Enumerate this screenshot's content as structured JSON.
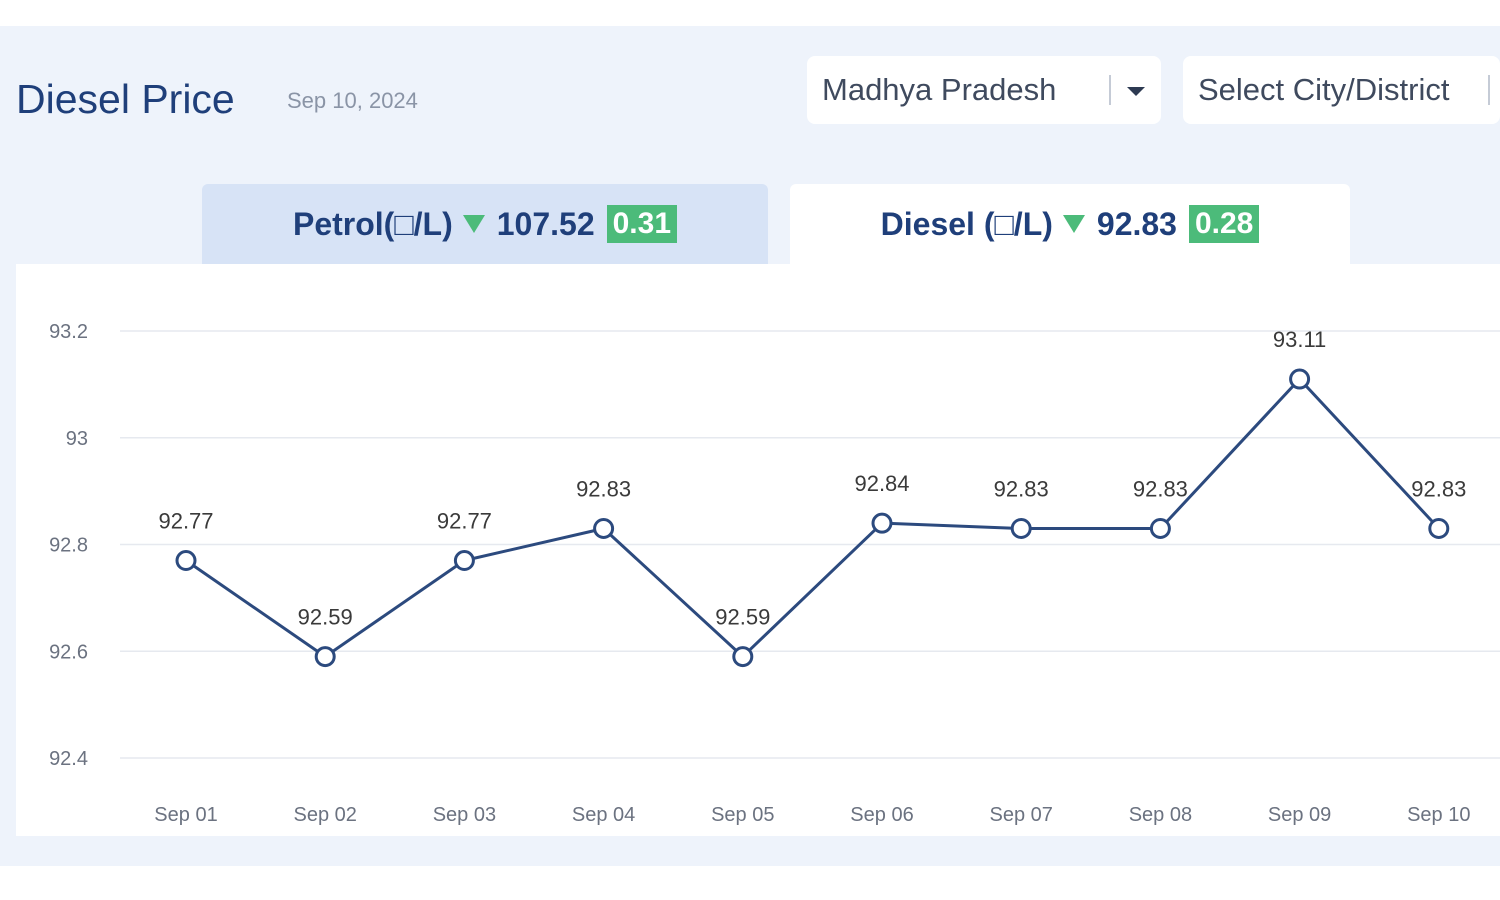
{
  "header": {
    "title": "Diesel Price",
    "date": "Sep 10, 2024"
  },
  "filters": {
    "state": "Madhya Pradesh",
    "city_placeholder": "Select City/District"
  },
  "tabs": [
    {
      "label": "Petrol(□/L)",
      "price": "107.52",
      "change": "0.31",
      "direction": "down",
      "active": false
    },
    {
      "label": "Diesel (□/L)",
      "price": "92.83",
      "change": "0.28",
      "direction": "down",
      "active": true
    }
  ],
  "colors": {
    "accent": "#1f3f7a",
    "line": "#2c4a7e",
    "badge": "#4cbb7a",
    "background": "#eef3fb"
  },
  "chart_data": {
    "type": "line",
    "categories": [
      "Sep 01",
      "Sep 02",
      "Sep 03",
      "Sep 04",
      "Sep 05",
      "Sep 06",
      "Sep 07",
      "Sep 08",
      "Sep 09",
      "Sep 10"
    ],
    "values": [
      92.77,
      92.59,
      92.77,
      92.83,
      92.59,
      92.84,
      92.83,
      92.83,
      93.11,
      92.83
    ],
    "y_ticks": [
      "92.4",
      "92.6",
      "92.8",
      "93",
      "93.2"
    ],
    "ylim": [
      92.4,
      93.2
    ],
    "grid": true
  }
}
